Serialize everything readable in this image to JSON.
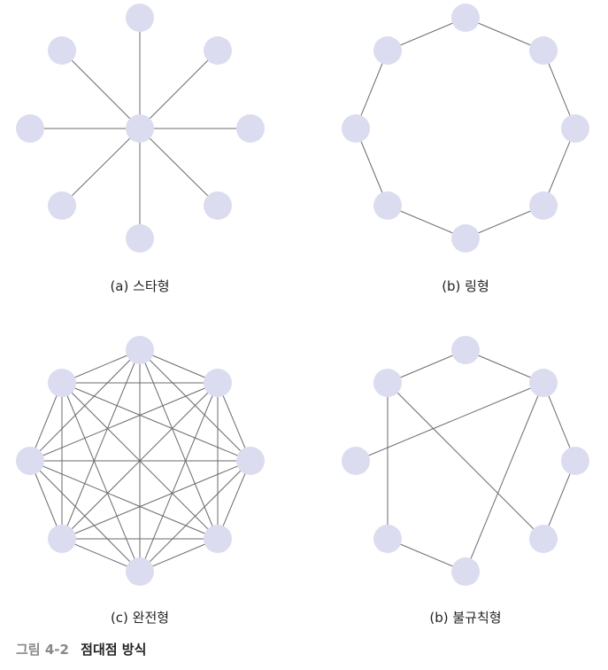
{
  "panels": [
    {
      "id": "star",
      "label": "(a) 스타형",
      "topology": "star"
    },
    {
      "id": "ring",
      "label": "(b) 링형",
      "topology": "ring"
    },
    {
      "id": "complete",
      "label": "(c) 완전형",
      "topology": "complete"
    },
    {
      "id": "irregular",
      "label": "(b) 불규칙형",
      "topology": "irregular"
    }
  ],
  "caption": {
    "number": "그림 4-2",
    "title": "점대점 방식"
  },
  "colors": {
    "node": "#dcdcf0",
    "edge": "#6b6b6b"
  }
}
